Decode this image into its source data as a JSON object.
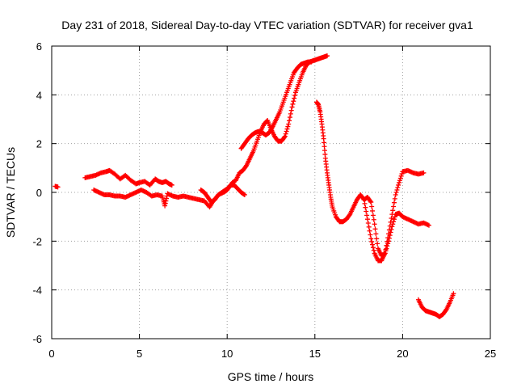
{
  "chart_data": {
    "type": "scatter",
    "title": "Day 231 of 2018, Sidereal Day-to-day VTEC variation (SDTVAR) for receiver gva1",
    "xlabel": "GPS time / hours",
    "ylabel": "SDTVAR / TECUs",
    "xlim": [
      0,
      25
    ],
    "ylim": [
      -6,
      6
    ],
    "xticks": [
      "0",
      "5",
      "10",
      "15",
      "20",
      "25"
    ],
    "yticks": [
      "-6",
      "-4",
      "-2",
      "0",
      "2",
      "4",
      "6"
    ],
    "grid": true,
    "legend": "none",
    "marker": "plus",
    "color": "#ff0000",
    "series": [
      {
        "x": [
          0.2,
          0.35,
          1.9,
          2.2,
          2.5,
          2.8,
          3.1,
          3.3,
          3.6,
          3.9,
          4.2,
          4.5,
          4.8,
          5.0,
          5.3,
          5.6,
          5.9,
          6.1,
          6.3,
          6.5,
          6.7,
          6.85
        ],
        "y": [
          0.25,
          0.22,
          0.6,
          0.65,
          0.7,
          0.8,
          0.85,
          0.9,
          0.75,
          0.55,
          0.7,
          0.5,
          0.35,
          0.4,
          0.45,
          0.3,
          0.55,
          0.45,
          0.4,
          0.45,
          0.35,
          0.3
        ]
      },
      {
        "x": [
          2.4,
          2.7,
          3.0,
          3.3,
          3.6,
          3.9,
          4.2,
          4.5,
          4.8,
          5.1,
          5.4,
          5.7,
          6.0,
          6.3,
          6.45,
          6.6,
          6.9,
          7.2,
          7.5,
          7.8,
          8.1,
          8.4,
          8.7,
          9.0,
          9.2,
          9.5,
          9.8,
          10.0,
          10.2,
          10.4,
          10.6,
          10.8,
          11.0
        ],
        "y": [
          0.1,
          0.0,
          -0.1,
          -0.1,
          -0.15,
          -0.15,
          -0.2,
          -0.1,
          0.0,
          0.1,
          0.0,
          -0.15,
          -0.1,
          -0.15,
          -0.55,
          -0.05,
          -0.15,
          -0.2,
          -0.15,
          -0.2,
          -0.25,
          -0.3,
          -0.35,
          -0.6,
          -0.35,
          -0.1,
          0.0,
          0.1,
          0.3,
          0.3,
          0.15,
          0.0,
          -0.1
        ]
      },
      {
        "x": [
          8.5,
          8.7,
          8.9,
          9.1,
          9.3,
          9.5,
          9.7,
          9.9,
          10.1,
          10.3,
          10.5,
          10.7,
          10.9,
          11.1,
          11.3,
          11.5,
          11.7,
          11.9,
          12.1,
          12.3,
          12.5,
          12.7,
          12.9,
          13.1,
          13.3,
          13.5,
          13.7,
          13.9,
          14.1,
          14.3,
          14.5,
          14.7,
          14.9,
          15.1,
          15.3,
          15.5,
          15.7
        ],
        "y": [
          0.1,
          0.0,
          -0.2,
          -0.4,
          -0.3,
          -0.1,
          0.0,
          0.1,
          0.2,
          0.4,
          0.5,
          0.8,
          0.9,
          1.1,
          1.4,
          1.7,
          2.1,
          2.5,
          2.8,
          2.95,
          2.6,
          2.3,
          2.1,
          2.1,
          2.3,
          2.8,
          3.5,
          4.1,
          4.5,
          4.9,
          5.2,
          5.35,
          5.4,
          5.45,
          5.5,
          5.55,
          5.6
        ]
      },
      {
        "x": [
          10.8,
          11.0,
          11.2,
          11.4,
          11.6,
          11.8,
          12.0,
          12.2,
          12.4,
          12.6,
          12.8,
          13.0,
          13.2,
          13.4,
          13.6,
          13.8,
          14.0,
          14.2,
          14.4,
          14.6,
          14.8
        ],
        "y": [
          1.8,
          2.0,
          2.2,
          2.35,
          2.45,
          2.5,
          2.45,
          2.35,
          2.45,
          2.7,
          3.0,
          3.3,
          3.7,
          4.1,
          4.5,
          4.9,
          5.1,
          5.25,
          5.3,
          5.35,
          5.35
        ]
      },
      {
        "x": [
          15.1,
          15.2,
          15.3,
          15.4,
          15.5,
          15.6,
          15.7,
          15.8,
          15.9,
          16.0,
          16.2,
          16.4,
          16.6,
          16.8,
          17.0,
          17.2,
          17.4,
          17.6,
          17.8,
          18.0,
          18.2,
          18.4,
          18.6,
          18.8,
          19.0,
          19.2,
          19.4,
          19.6,
          19.8,
          20.0,
          20.3,
          20.6,
          20.9,
          21.2
        ],
        "y": [
          3.7,
          3.6,
          3.3,
          2.8,
          2.2,
          1.4,
          0.8,
          0.3,
          -0.2,
          -0.6,
          -1.0,
          -1.2,
          -1.2,
          -1.1,
          -0.9,
          -0.6,
          -0.3,
          -0.1,
          -0.3,
          -1.1,
          -1.9,
          -2.5,
          -2.8,
          -2.8,
          -2.5,
          -1.7,
          -0.9,
          -0.1,
          0.4,
          0.85,
          0.9,
          0.8,
          0.75,
          0.8
        ]
      },
      {
        "x": [
          17.8,
          18.0,
          18.2,
          18.4,
          18.6,
          18.8,
          19.0,
          19.2,
          19.4,
          19.6,
          19.8,
          20.0,
          20.3,
          20.6,
          20.9,
          21.2,
          21.5
        ],
        "y": [
          -0.3,
          -0.2,
          -0.4,
          -1.3,
          -2.3,
          -2.6,
          -2.5,
          -2.0,
          -1.4,
          -0.9,
          -0.85,
          -1.0,
          -1.1,
          -1.2,
          -1.3,
          -1.25,
          -1.35
        ]
      },
      {
        "x": [
          20.9,
          21.1,
          21.3,
          21.5,
          21.7,
          21.9,
          22.1,
          22.3,
          22.5,
          22.7,
          22.9
        ],
        "y": [
          -4.4,
          -4.7,
          -4.85,
          -4.9,
          -4.95,
          -5.0,
          -5.1,
          -5.0,
          -4.8,
          -4.5,
          -4.15
        ]
      }
    ]
  }
}
